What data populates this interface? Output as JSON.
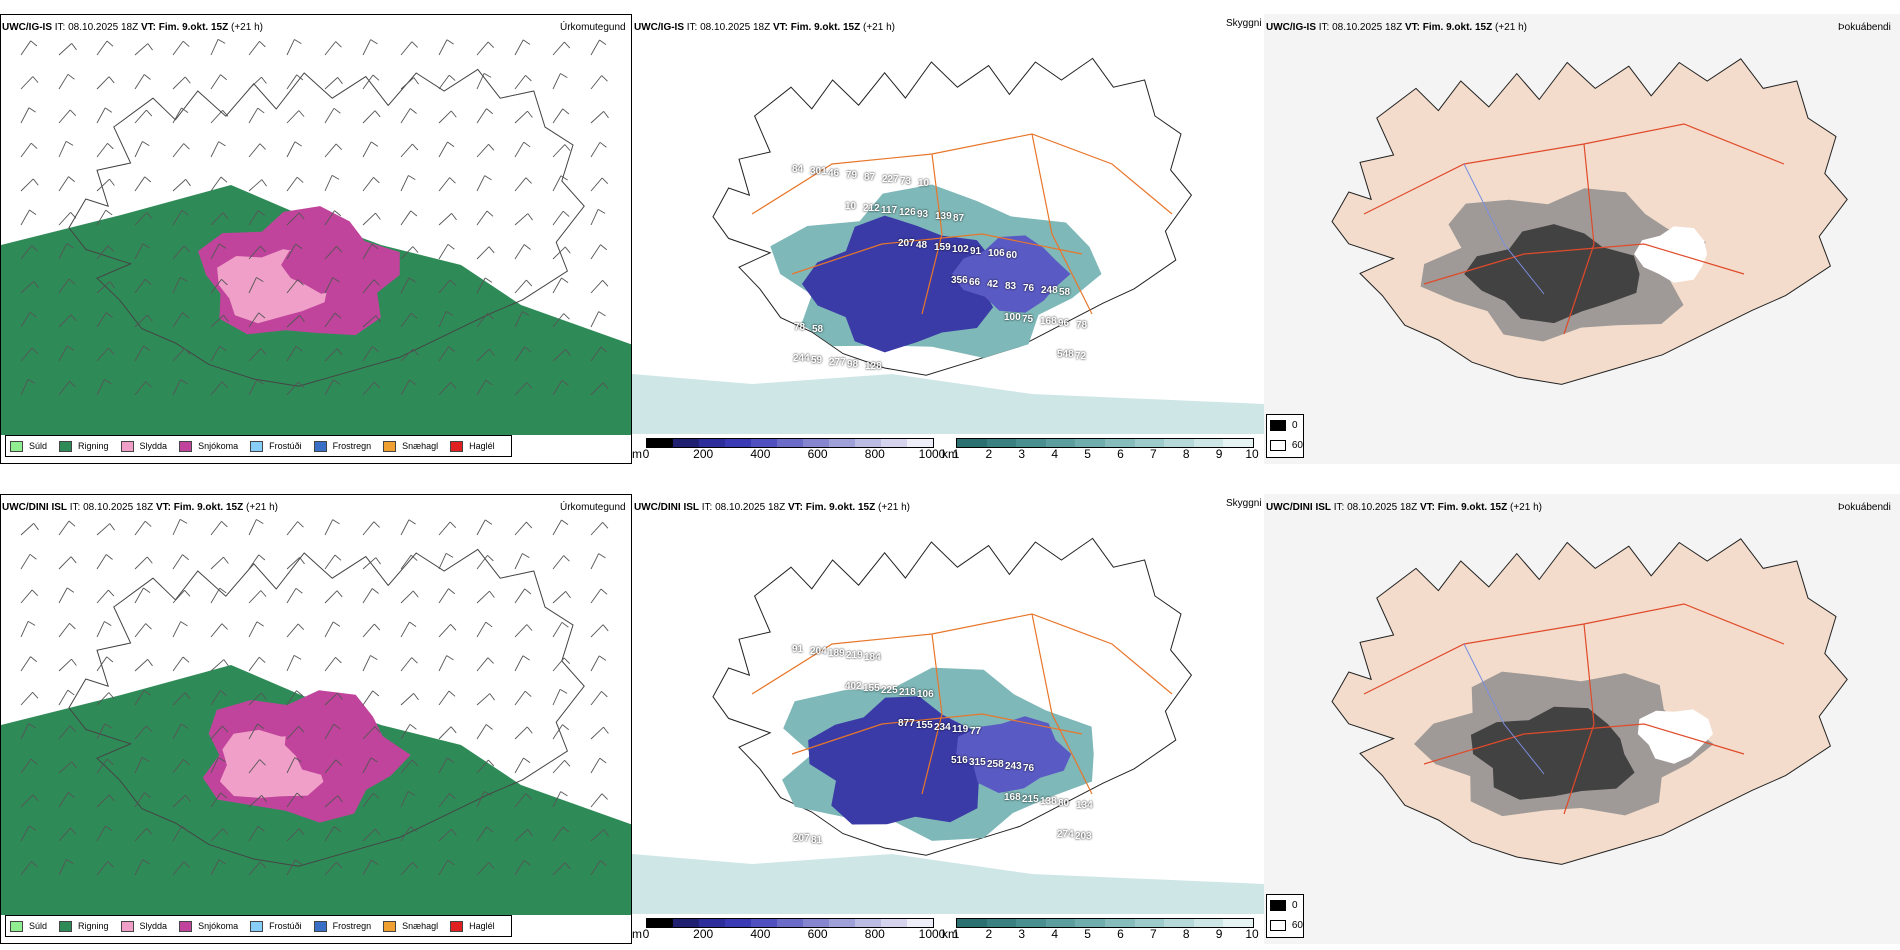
{
  "rows": [
    {
      "model": "UWC/IG-IS",
      "it_label": "IT:",
      "it_value": "08.10.2025 18Z",
      "vt_label": "VT: Fim. 9.okt. 15Z",
      "lead": "(+21 h)",
      "cloud_labels": [
        "84",
        "10",
        "207",
        "356",
        "100",
        "548",
        "301",
        "212",
        "48",
        "66",
        "75",
        "72",
        "46",
        "117",
        "159",
        "42",
        "168",
        "244",
        "79",
        "126",
        "102",
        "83",
        "96",
        "59",
        "87",
        "93",
        "91",
        "76",
        "78",
        "277",
        "227",
        "139",
        "106",
        "248",
        "78",
        "98",
        "73",
        "87",
        "60",
        "58",
        "58",
        "128",
        "10"
      ]
    },
    {
      "model": "UWC/DINI ISL",
      "it_label": "IT:",
      "it_value": "08.10.2025 18Z",
      "vt_label": "VT: Fim. 9.okt. 15Z",
      "lead": "(+21 h)",
      "cloud_labels": [
        "91",
        "402",
        "877",
        "516",
        "168",
        "274",
        "204",
        "155",
        "155",
        "315",
        "215",
        "203",
        "189",
        "225",
        "234",
        "258",
        "138",
        "207",
        "219",
        "218",
        "119",
        "243",
        "80",
        "81",
        "184",
        "106",
        "77",
        "76",
        "134"
      ]
    }
  ],
  "panel_titles": {
    "precip": "Úrkomutegund",
    "cloud": "Skyggni",
    "visibility": "Þokuábendi"
  },
  "precip_legend": [
    {
      "label": "Súld",
      "color": "#90ee90"
    },
    {
      "label": "Rigning",
      "color": "#2e8b57"
    },
    {
      "label": "Slydda",
      "color": "#f0a0c8"
    },
    {
      "label": "Snjókoma",
      "color": "#c0449c"
    },
    {
      "label": "Frostúði",
      "color": "#87cefa"
    },
    {
      "label": "Frostregn",
      "color": "#3a6fc8"
    },
    {
      "label": "Snæhagl",
      "color": "#f0a030"
    },
    {
      "label": "Haglél",
      "color": "#e02020"
    }
  ],
  "cloud_base_bar": {
    "unit": "m",
    "ticks": [
      "0",
      "200",
      "400",
      "600",
      "800",
      "1000"
    ],
    "colors": [
      "#000000",
      "#202070",
      "#2d2d9c",
      "#3a3ab4",
      "#5050c0",
      "#6b6bc8",
      "#8686d0",
      "#a0a0d8",
      "#bbbbe4",
      "#d4d4ee",
      "#eeeef8"
    ]
  },
  "visibility_bar": {
    "unit": "km",
    "ticks": [
      "1",
      "2",
      "3",
      "4",
      "5",
      "6",
      "7",
      "8",
      "9",
      "10"
    ],
    "colors": [
      "#2a7070",
      "#3a8080",
      "#4a8f8f",
      "#5c9e9e",
      "#70adad",
      "#86bcbc",
      "#9dcaca",
      "#b5d8d8",
      "#cde6e6",
      "#e6f3f3"
    ]
  },
  "fog_legend": [
    {
      "label": "0",
      "color": "#000000"
    },
    {
      "label": "60",
      "color": "#ffffff"
    }
  ],
  "colors": {
    "rain": "#2e8b57",
    "snow": "#c0449c",
    "sleet": "#f0a0c8",
    "road": "#e8762a",
    "fog_land": "#f3dccb"
  }
}
